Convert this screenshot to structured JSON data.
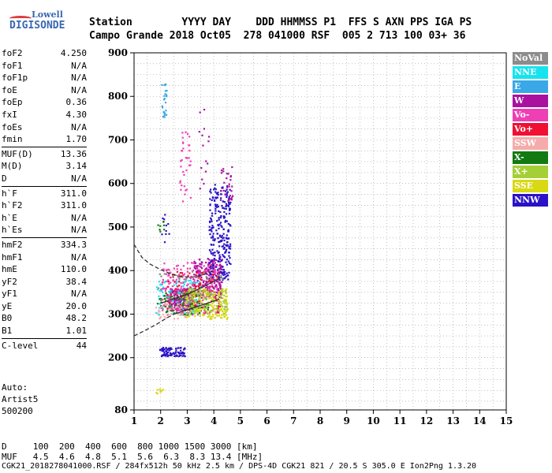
{
  "logo": {
    "line1": "Lowell",
    "line2": "DIGISONDE"
  },
  "header": {
    "line1": "Station        YYYY DAY    DDD HHMMSS P1  FFS S AXN PPS IGA PS",
    "line2": "Campo Grande 2018 Oct05  278 041000 RSF  005 2 713 100 03+ 36"
  },
  "params": {
    "groups": [
      [
        {
          "k": "foF2",
          "v": "4.250"
        },
        {
          "k": "foF1",
          "v": "N/A"
        },
        {
          "k": "foF1p",
          "v": "N/A"
        },
        {
          "k": "foE",
          "v": "N/A"
        },
        {
          "k": "foEp",
          "v": "0.36"
        },
        {
          "k": "fxI",
          "v": "4.30"
        },
        {
          "k": "foEs",
          "v": "N/A"
        },
        {
          "k": "fmin",
          "v": "1.70"
        }
      ],
      [
        {
          "k": "MUF(D)",
          "v": "13.36"
        },
        {
          "k": "M(D)",
          "v": "3.14"
        },
        {
          "k": "D",
          "v": "N/A"
        }
      ],
      [
        {
          "k": "h`F",
          "v": "311.0"
        },
        {
          "k": "h`F2",
          "v": "311.0"
        },
        {
          "k": "h`E",
          "v": "N/A"
        },
        {
          "k": "h`Es",
          "v": "N/A"
        }
      ],
      [
        {
          "k": "hmF2",
          "v": "334.3"
        },
        {
          "k": "hmF1",
          "v": "N/A"
        },
        {
          "k": "hmE",
          "v": "110.0"
        },
        {
          "k": "yF2",
          "v": "38.4"
        },
        {
          "k": "yF1",
          "v": "N/A"
        },
        {
          "k": "yE",
          "v": "20.0"
        },
        {
          "k": "B0",
          "v": "48.2"
        },
        {
          "k": "B1",
          "v": "1.01"
        }
      ],
      [
        {
          "k": "C-level",
          "v": "44"
        }
      ]
    ]
  },
  "auto": {
    "line1": "Auto:",
    "line2": "Artist5",
    "line3": "500200"
  },
  "legend": [
    {
      "label": "NoVal",
      "color": "#8c8c8c"
    },
    {
      "label": "NNE",
      "color": "#17e3f0"
    },
    {
      "label": "E",
      "color": "#3aa7e6"
    },
    {
      "label": "W",
      "color": "#a8129f"
    },
    {
      "label": "Vo-",
      "color": "#ee3fb5"
    },
    {
      "label": "Vo+",
      "color": "#f01032"
    },
    {
      "label": "SSW",
      "color": "#f5abab"
    },
    {
      "label": "X-",
      "color": "#117a11"
    },
    {
      "label": "X+",
      "color": "#a4cf37"
    },
    {
      "label": "SSE",
      "color": "#d9d814"
    },
    {
      "label": "NNW",
      "color": "#2a12c6"
    }
  ],
  "footer": {
    "line1": "D     100  200  400  600  800 1000 1500 3000 [km]",
    "line2": "MUF   4.5  4.6  4.8  5.1  5.6  6.3  8.3 13.4 [MHz]",
    "file": "CGK21_2018278041000.RSF / 284fx512h 50 kHz 2.5 km / DPS-4D CGK21 821 / 20.5 S 305.0 E Ion2Png 1.3.20"
  },
  "chart_data": {
    "type": "scatter",
    "x_ticks": [
      "1",
      "2",
      "3",
      "4",
      "5",
      "6",
      "7",
      "8",
      "9",
      "10",
      "11",
      "12",
      "13",
      "14",
      "15"
    ],
    "y_ticks": [
      "80",
      "200",
      "300",
      "400",
      "500",
      "600",
      "700",
      "800",
      "900"
    ],
    "xlim": [
      1,
      15
    ],
    "ylim": [
      80,
      900
    ],
    "grid": true,
    "clusters": [
      {
        "color": "#a8129f",
        "x": [
          2.3,
          3.2
        ],
        "y": [
          310,
          360
        ],
        "n": 260
      },
      {
        "color": "#a8129f",
        "x": [
          3.2,
          4.3
        ],
        "y": [
          340,
          430
        ],
        "n": 220
      },
      {
        "color": "#2a12c6",
        "x": [
          3.8,
          4.6
        ],
        "y": [
          380,
          600
        ],
        "n": 260
      },
      {
        "color": "#2a12c6",
        "x": [
          1.9,
          2.9
        ],
        "y": [
          205,
          225
        ],
        "n": 90
      },
      {
        "color": "#ee3fb5",
        "x": [
          2.0,
          4.2
        ],
        "y": [
          300,
          420
        ],
        "n": 220
      },
      {
        "color": "#17e3f0",
        "x": [
          1.8,
          3.5
        ],
        "y": [
          300,
          380
        ],
        "n": 90
      },
      {
        "color": "#d9d814",
        "x": [
          2.8,
          4.5
        ],
        "y": [
          290,
          360
        ],
        "n": 200
      },
      {
        "color": "#f01032",
        "x": [
          2.2,
          4.2
        ],
        "y": [
          305,
          400
        ],
        "n": 90
      },
      {
        "color": "#117a11",
        "x": [
          1.8,
          3.8
        ],
        "y": [
          300,
          350
        ],
        "n": 70
      },
      {
        "color": "#a4cf37",
        "x": [
          3.0,
          4.5
        ],
        "y": [
          300,
          360
        ],
        "n": 90
      },
      {
        "color": "#8c8c8c",
        "x": [
          1.8,
          4.4
        ],
        "y": [
          300,
          400
        ],
        "n": 60
      },
      {
        "color": "#f5abab",
        "x": [
          1.8,
          3.0
        ],
        "y": [
          290,
          330
        ],
        "n": 40
      },
      {
        "color": "#3aa7e6",
        "x": [
          2.0,
          2.2
        ],
        "y": [
          750,
          830
        ],
        "n": 25
      },
      {
        "color": "#ee3fb5",
        "x": [
          2.7,
          3.1
        ],
        "y": [
          560,
          720
        ],
        "n": 35
      },
      {
        "color": "#a8129f",
        "x": [
          3.4,
          3.8
        ],
        "y": [
          580,
          780
        ],
        "n": 15
      },
      {
        "color": "#a8129f",
        "x": [
          4.2,
          4.7
        ],
        "y": [
          560,
          640
        ],
        "n": 30
      },
      {
        "color": "#117a11",
        "x": [
          1.8,
          2.1
        ],
        "y": [
          490,
          520
        ],
        "n": 8
      },
      {
        "color": "#2a12c6",
        "x": [
          1.9,
          2.3
        ],
        "y": [
          465,
          540
        ],
        "n": 10
      },
      {
        "color": "#d9d814",
        "x": [
          1.8,
          2.1
        ],
        "y": [
          115,
          135
        ],
        "n": 8
      }
    ],
    "traces": [
      {
        "style": "dashed",
        "x": [
          1.0,
          1.3,
          1.6,
          2.0,
          2.4,
          2.8,
          3.2,
          3.6,
          4.0
        ],
        "y": [
          460,
          430,
          415,
          402,
          392,
          386,
          385,
          390,
          400
        ]
      },
      {
        "style": "dashed",
        "x": [
          1.0,
          1.4,
          1.8,
          2.2,
          2.5
        ],
        "y": [
          250,
          262,
          275,
          290,
          300
        ]
      },
      {
        "style": "solid",
        "x": [
          2.5,
          2.9,
          3.3,
          3.7,
          4.0,
          4.2
        ],
        "y": [
          300,
          308,
          316,
          324,
          330,
          335
        ]
      },
      {
        "style": "solid",
        "x": [
          2.0,
          2.5,
          3.0,
          3.5,
          4.0,
          4.3
        ],
        "y": [
          325,
          335,
          345,
          360,
          375,
          385
        ]
      }
    ]
  }
}
